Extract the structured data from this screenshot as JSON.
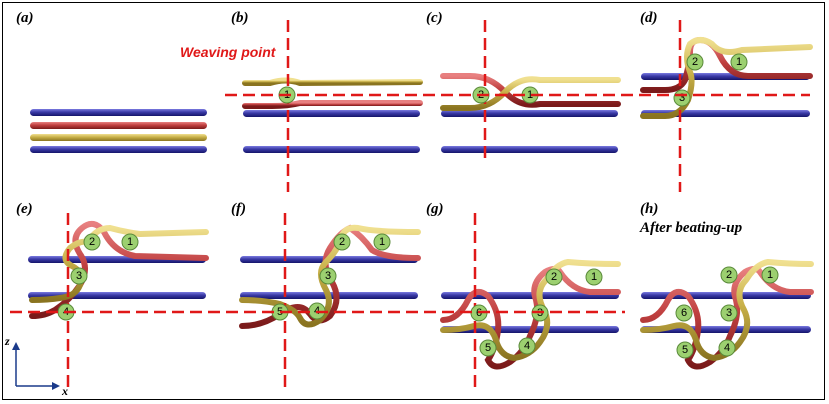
{
  "colors": {
    "weft_blue": "#3a3aa6",
    "red_yarn": "#c04040",
    "gold_yarn": "#c8b048",
    "guide_line": "#e01818",
    "number_marker": "#9cd070"
  },
  "panels": {
    "a": "(a)",
    "b": "(b)",
    "c": "(c)",
    "d": "(d)",
    "e": "(e)",
    "f": "(f)",
    "g": "(g)",
    "h": "(h)"
  },
  "annotations": {
    "weaving_point": "Weaving point",
    "after_beating": "After beating-up"
  },
  "axes": {
    "z": "z",
    "x": "x"
  },
  "markers": {
    "b": [
      "1"
    ],
    "c": [
      "2",
      "1"
    ],
    "d": [
      "2",
      "1",
      "3"
    ],
    "e": [
      "2",
      "1",
      "3",
      "4"
    ],
    "f": [
      "2",
      "1",
      "3",
      "5",
      "4"
    ],
    "g": [
      "2",
      "1",
      "6",
      "3",
      "5",
      "4"
    ],
    "h": [
      "2",
      "1",
      "6",
      "3",
      "5",
      "4"
    ]
  }
}
